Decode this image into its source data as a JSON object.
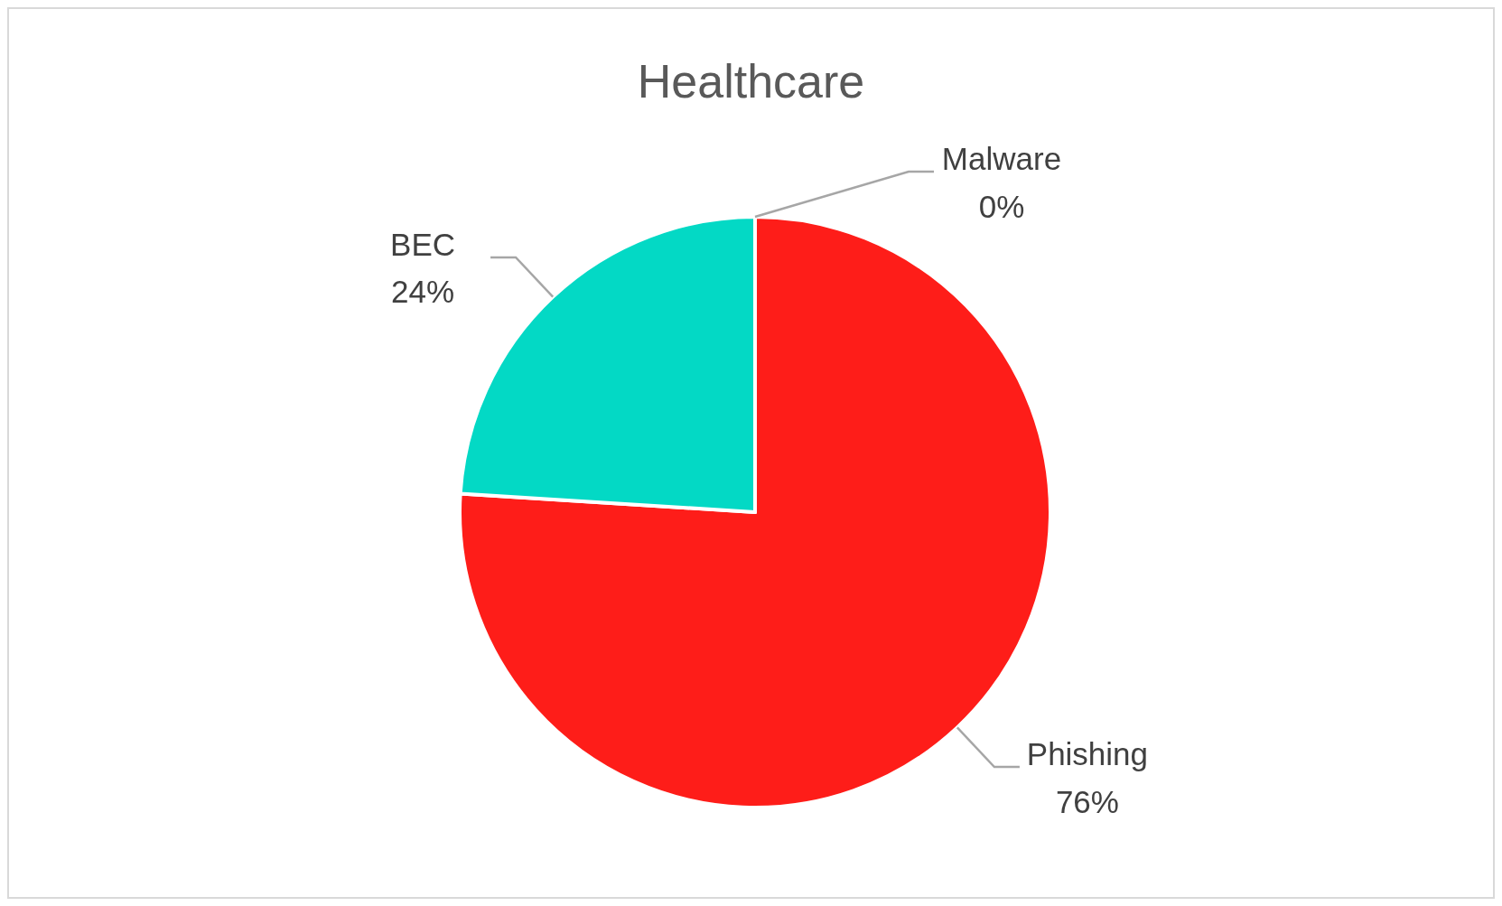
{
  "chart_data": {
    "type": "pie",
    "title": "Healthcare",
    "categories": [
      "Phishing",
      "BEC",
      "Malware"
    ],
    "values": [
      76,
      24,
      0
    ],
    "colors": [
      "#fe1d19",
      "#03d9c5",
      "#4f81bd"
    ],
    "value_labels": [
      "76%",
      "24%",
      "0%"
    ]
  }
}
